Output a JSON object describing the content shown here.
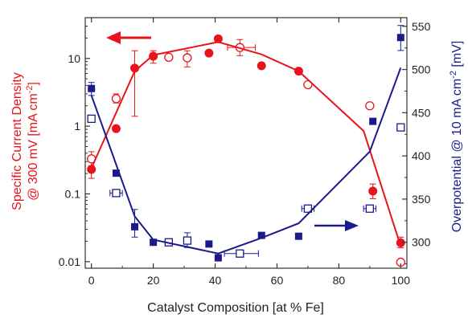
{
  "chart_data": {
    "type": "scatter",
    "xlabel": "Catalyst Composition  [at % Fe]",
    "ylabel_left_line1": "Specific Current Density",
    "ylabel_left_line2": "@ 300 mV  [mA cm",
    "ylabel_left_sup": "-2",
    "ylabel_left_end": "]",
    "ylabel_right_main": "Overpotential @ 10 mA cm",
    "ylabel_right_sup": "-2",
    "ylabel_right_end": "  [mV]",
    "xlim": [
      -2,
      102
    ],
    "ylim_left": [
      0.008,
      40
    ],
    "yscale_left": "log",
    "ylim_right": [
      270,
      560
    ],
    "x_ticks": [
      "0",
      "20",
      "40",
      "60",
      "80",
      "100"
    ],
    "y_left_ticks": [
      "0.01",
      "0.1",
      "1",
      "10"
    ],
    "y_right_ticks": [
      "300",
      "350",
      "400",
      "450",
      "500",
      "550"
    ],
    "colors": {
      "current": "#e8141b",
      "overpotential": "#1a1a8c"
    },
    "series": [
      {
        "axis": "left",
        "color": "#e8141b",
        "marker": "filled-circle",
        "points": [
          {
            "x": 0,
            "y": 0.23,
            "err": [
              0.17,
              0.3
            ]
          },
          {
            "x": 8,
            "y": 0.92
          },
          {
            "x": 14,
            "y": 7.2,
            "err": [
              1.4,
              13
            ]
          },
          {
            "x": 20,
            "y": 10.8,
            "err": [
              8.5,
              13
            ]
          },
          {
            "x": 38,
            "y": 12.0
          },
          {
            "x": 41,
            "y": 19.5
          },
          {
            "x": 55,
            "y": 7.8
          },
          {
            "x": 67,
            "y": 6.5
          },
          {
            "x": 91,
            "y": 0.11,
            "err": [
              0.085,
              0.14
            ]
          },
          {
            "x": 100,
            "y": 0.019,
            "err": [
              0.016,
              0.023
            ]
          }
        ]
      },
      {
        "axis": "left",
        "color": "#e8141b",
        "marker": "open-circle",
        "points": [
          {
            "x": 0,
            "y": 0.33,
            "err": [
              0.26,
              0.42
            ]
          },
          {
            "x": 8,
            "y": 2.55,
            "err": [
              2.2,
              3.0
            ]
          },
          {
            "x": 25,
            "y": 10.4
          },
          {
            "x": 31,
            "y": 10.2,
            "err": [
              7.5,
              13
            ]
          },
          {
            "x": 48,
            "y": 14.5,
            "err": [
              11,
              19
            ],
            "xerr": [
              44,
              53
            ]
          },
          {
            "x": 70,
            "y": 4.1
          },
          {
            "x": 90,
            "y": 2.0
          },
          {
            "x": 100,
            "y": 0.0098
          }
        ]
      },
      {
        "axis": "left",
        "color": "#e8141b",
        "marker": "line",
        "points": [
          {
            "x": 0,
            "y": 0.24
          },
          {
            "x": 14,
            "y": 6.5
          },
          {
            "x": 20,
            "y": 11.2
          },
          {
            "x": 41,
            "y": 17.5
          },
          {
            "x": 55,
            "y": 11.5
          },
          {
            "x": 67,
            "y": 6.5
          },
          {
            "x": 88,
            "y": 0.85
          },
          {
            "x": 100,
            "y": 0.017
          }
        ]
      },
      {
        "axis": "right",
        "color": "#1a1a8c",
        "marker": "filled-square",
        "points": [
          {
            "x": 0,
            "y": 478,
            "err": [
              470,
              485
            ]
          },
          {
            "x": 8,
            "y": 380
          },
          {
            "x": 14,
            "y": 318,
            "err": [
              306,
              338
            ]
          },
          {
            "x": 20,
            "y": 300
          },
          {
            "x": 38,
            "y": 298
          },
          {
            "x": 41,
            "y": 282
          },
          {
            "x": 55,
            "y": 308
          },
          {
            "x": 67,
            "y": 307
          },
          {
            "x": 91,
            "y": 440
          },
          {
            "x": 100,
            "y": 537,
            "err": [
              522,
              551
            ]
          }
        ]
      },
      {
        "axis": "right",
        "color": "#1a1a8c",
        "marker": "open-square",
        "points": [
          {
            "x": 0,
            "y": 443
          },
          {
            "x": 8,
            "y": 357,
            "xerr": [
              6,
              10
            ]
          },
          {
            "x": 25,
            "y": 300
          },
          {
            "x": 31,
            "y": 302,
            "err": [
              294,
              311
            ]
          },
          {
            "x": 48,
            "y": 287,
            "xerr": [
              43,
              54
            ]
          },
          {
            "x": 70,
            "y": 339,
            "xerr": [
              68,
              72
            ]
          },
          {
            "x": 90,
            "y": 339,
            "xerr": [
              88,
              92
            ]
          },
          {
            "x": 100,
            "y": 433
          }
        ]
      },
      {
        "axis": "right",
        "color": "#1a1a8c",
        "marker": "line",
        "points": [
          {
            "x": 0,
            "y": 470
          },
          {
            "x": 14,
            "y": 330
          },
          {
            "x": 20,
            "y": 303
          },
          {
            "x": 41,
            "y": 287
          },
          {
            "x": 55,
            "y": 305
          },
          {
            "x": 67,
            "y": 322
          },
          {
            "x": 90,
            "y": 405
          },
          {
            "x": 100,
            "y": 502
          }
        ]
      }
    ],
    "annotations": [
      {
        "type": "arrow",
        "direction": "left",
        "color": "#e8141b"
      },
      {
        "type": "arrow",
        "direction": "right",
        "color": "#1a1a8c"
      }
    ]
  }
}
